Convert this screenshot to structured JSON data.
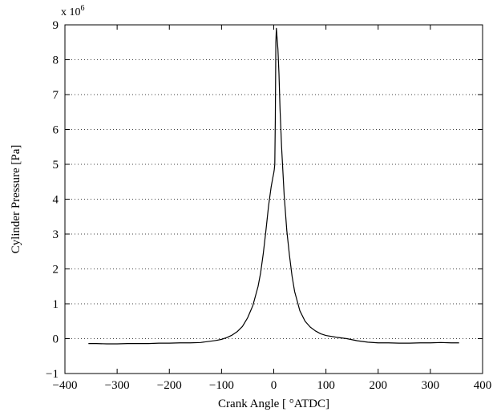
{
  "chart_data": {
    "type": "line",
    "xlabel": "Crank Angle [ °ATDC]",
    "ylabel": "Cylinder Pressure [Pa]",
    "y_multiplier_label": "x 10",
    "y_multiplier_exponent": "6",
    "xlim": [
      -400,
      400
    ],
    "ylim": [
      -1,
      9
    ],
    "x_ticks": [
      -400,
      -300,
      -200,
      -100,
      0,
      100,
      200,
      300,
      400
    ],
    "y_ticks": [
      -1,
      0,
      1,
      2,
      3,
      4,
      5,
      6,
      7,
      8,
      9
    ],
    "grid": "horizontal dotted",
    "series": [
      {
        "x": [
          -355,
          -340,
          -320,
          -300,
          -280,
          -260,
          -240,
          -220,
          -200,
          -180,
          -160,
          -140,
          -120,
          -110,
          -100,
          -90,
          -80,
          -70,
          -60,
          -50,
          -40,
          -30,
          -25,
          -20,
          -15,
          -10,
          -5,
          -2,
          0,
          1,
          2,
          3,
          4,
          5,
          6,
          8,
          10,
          12,
          15,
          20,
          25,
          30,
          35,
          40,
          50,
          60,
          70,
          80,
          90,
          100,
          120,
          140,
          160,
          180,
          200,
          220,
          240,
          260,
          280,
          300,
          320,
          340,
          355
        ],
        "y": [
          -0.14,
          -0.14,
          -0.15,
          -0.15,
          -0.14,
          -0.14,
          -0.14,
          -0.13,
          -0.13,
          -0.12,
          -0.12,
          -0.11,
          -0.07,
          -0.05,
          -0.02,
          0.03,
          0.1,
          0.2,
          0.35,
          0.6,
          0.95,
          1.5,
          1.9,
          2.45,
          3.1,
          3.8,
          4.35,
          4.6,
          4.75,
          4.85,
          5.0,
          6.3,
          8.5,
          8.9,
          8.7,
          8.3,
          7.6,
          6.6,
          5.5,
          4.1,
          3.1,
          2.4,
          1.8,
          1.35,
          0.8,
          0.5,
          0.33,
          0.22,
          0.14,
          0.09,
          0.04,
          0.0,
          -0.06,
          -0.1,
          -0.12,
          -0.12,
          -0.13,
          -0.13,
          -0.12,
          -0.12,
          -0.11,
          -0.12,
          -0.12
        ]
      }
    ]
  }
}
